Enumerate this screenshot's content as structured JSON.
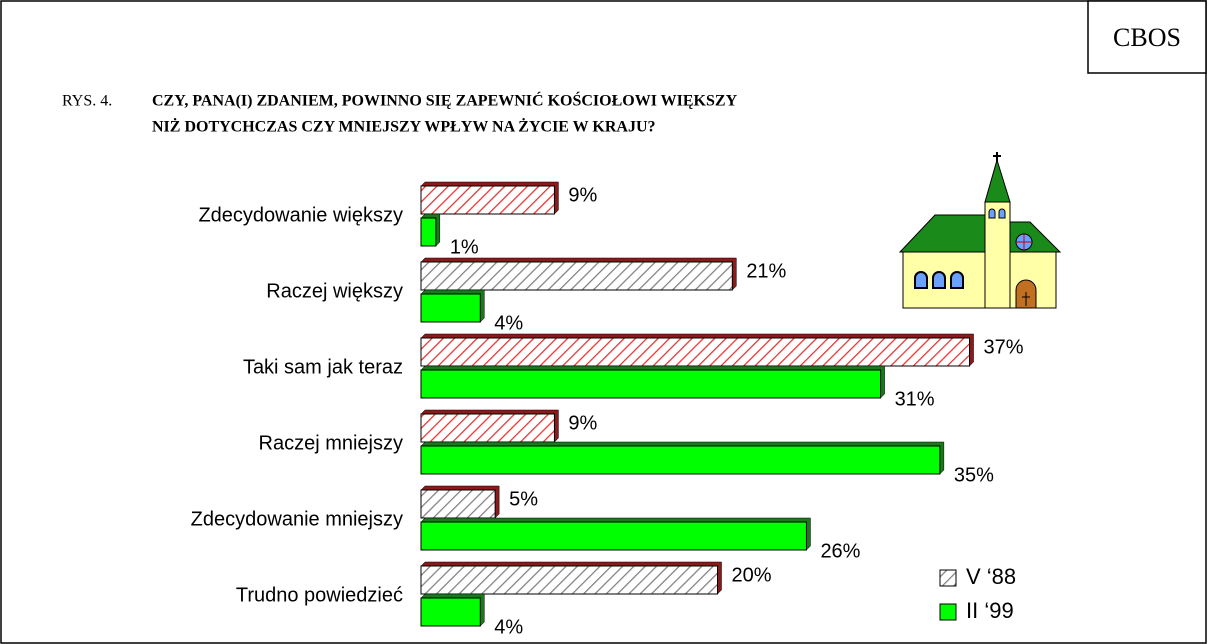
{
  "chart_data": {
    "type": "hbar",
    "badge": "CBOS",
    "title_prefix": "RYS. 4.",
    "title_lines": [
      "CZY, PANA(I) ZDANIEM, POWINNO SIĘ ZAPEWNIĆ KOŚCIOŁOWI WIĘKSZY",
      "NIŻ DOTYCHCZAS CZY MNIEJSZY WPŁYW NA ŻYCIE  W KRAJU?"
    ],
    "categories": [
      "Zdecydowanie większy",
      "Raczej większy",
      "Taki sam jak teraz",
      "Raczej mniejszy",
      "Zdecydowanie mniejszy",
      "Trudno powiedzieć"
    ],
    "xlim": [
      0,
      40
    ],
    "series": [
      {
        "name": "V ‘88",
        "color": "#808080",
        "hatch": true,
        "colors": [
          "#e83030",
          "#808080",
          "#e83030",
          "#e83030",
          "#808080",
          "#808080"
        ],
        "values": [
          9,
          21,
          37,
          9,
          5,
          20
        ],
        "value_labels": [
          "9%",
          "21%",
          "37%",
          "9%",
          "5%",
          "20%"
        ]
      },
      {
        "name": "II ‘99",
        "color": "#00ff00",
        "hatch": false,
        "values": [
          1,
          4,
          31,
          35,
          26,
          4
        ],
        "value_labels": [
          "1%",
          "4%",
          "31%",
          "35%",
          "26%",
          "4%"
        ]
      }
    ]
  }
}
